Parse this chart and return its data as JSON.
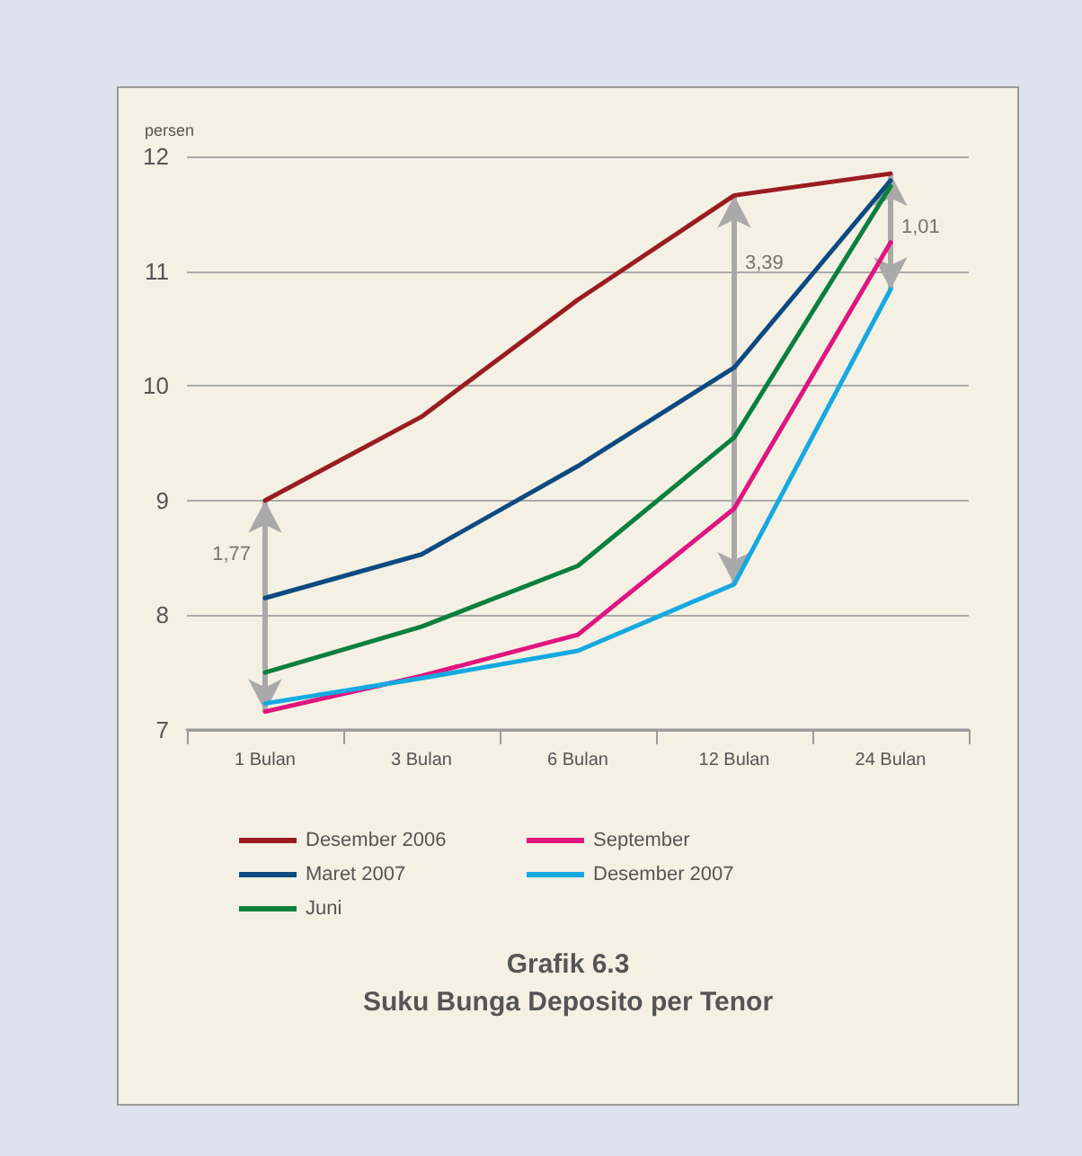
{
  "chart_data": {
    "type": "line",
    "title": "Grafik 6.3",
    "subtitle": "Suku Bunga Deposito per Tenor",
    "ylabel": "persen",
    "categories": [
      "1 Bulan",
      "3 Bulan",
      "6 Bulan",
      "12 Bulan",
      "24 Bulan"
    ],
    "series": [
      {
        "name": "Desember 2006",
        "color": "#9b1c20",
        "values": [
          9.0,
          9.73,
          10.75,
          11.66,
          11.85
        ]
      },
      {
        "name": "Maret 2007",
        "color": "#0d4a80",
        "values": [
          8.15,
          8.53,
          9.3,
          10.16,
          11.79
        ]
      },
      {
        "name": "Juni",
        "color": "#0b7f3f",
        "values": [
          7.5,
          7.9,
          8.43,
          9.55,
          11.74
        ]
      },
      {
        "name": "September",
        "color": "#e0157f",
        "values": [
          7.16,
          7.47,
          7.83,
          8.93,
          11.25
        ]
      },
      {
        "name": "Desember 2007",
        "color": "#15a9e1",
        "values": [
          7.23,
          7.45,
          7.69,
          8.27,
          10.84
        ]
      }
    ],
    "ylim": [
      7,
      12
    ],
    "yticks": [
      7,
      8,
      9,
      10,
      11,
      12
    ],
    "grid": "y",
    "legend": "bottom",
    "marker": "none",
    "line_style": "solid",
    "annotations": [
      {
        "text": "1,77",
        "x": "1 Bulan",
        "y": 9.0
      },
      {
        "text": "3,39",
        "x": "12 Bulan",
        "y": 11.66
      },
      {
        "text": "1,01",
        "x": "24 Bulan",
        "y": 11.85
      }
    ]
  }
}
